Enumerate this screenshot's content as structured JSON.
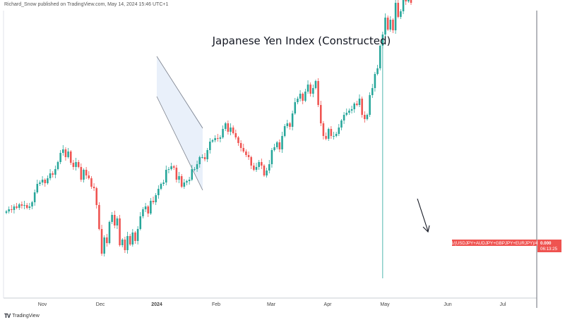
{
  "header": "Richard_Snow published on TradingView.com, May 14, 2024 15:46 UTC+1",
  "brand": {
    "logo": "TV",
    "name": "TradingView"
  },
  "chart_data": {
    "type": "candlestick",
    "title": "Japanese Yen Index (Constructed)",
    "xlabel": "",
    "ylabel": "",
    "x_ticks": [
      "Nov",
      "Dec",
      "2024",
      "Feb",
      "Mar",
      "Apr",
      "May",
      "Jun",
      "Jul"
    ],
    "price_label": "0.000",
    "countdown": "06:13:25",
    "series_label": "1/(USDJPY+AUDJPY+GBPJPY+EURJPY)/4",
    "colors": {
      "up": "#26a69a",
      "down": "#ef5350",
      "channel": "#e3ecf9"
    },
    "close_series": [
      145,
      148,
      147,
      152,
      150,
      155,
      153,
      154,
      150,
      152,
      158,
      172,
      184,
      186,
      190,
      185,
      192,
      199,
      197,
      205,
      215,
      228,
      233,
      222,
      230,
      214,
      208,
      215,
      208,
      190,
      204,
      196,
      192,
      180,
      178,
      154,
      120,
      85,
      108,
      100,
      130,
      140,
      125,
      135,
      97,
      105,
      90,
      110,
      98,
      115,
      103,
      120,
      138,
      148,
      152,
      142,
      160,
      158,
      168,
      177,
      184,
      186,
      204,
      205,
      209,
      207,
      190,
      195,
      180,
      186,
      188,
      190,
      205,
      205,
      212,
      222,
      222,
      219,
      232,
      244,
      246,
      249,
      248,
      250,
      262,
      270,
      258,
      264,
      256,
      250,
      242,
      235,
      230,
      225,
      222,
      210,
      204,
      208,
      215,
      210,
      196,
      203,
      212,
      232,
      236,
      243,
      233,
      252,
      266,
      270,
      265,
      284,
      300,
      305,
      312,
      302,
      315,
      325,
      312,
      320,
      330,
      296,
      270,
      252,
      248,
      262,
      252,
      252,
      255,
      264,
      274,
      282,
      285,
      288,
      290,
      298,
      296,
      305,
      282,
      276,
      282,
      310,
      320,
      340,
      348,
      380,
      396,
      420,
      403,
      417,
      402,
      441,
      421,
      429,
      445,
      443,
      454,
      441
    ]
  }
}
